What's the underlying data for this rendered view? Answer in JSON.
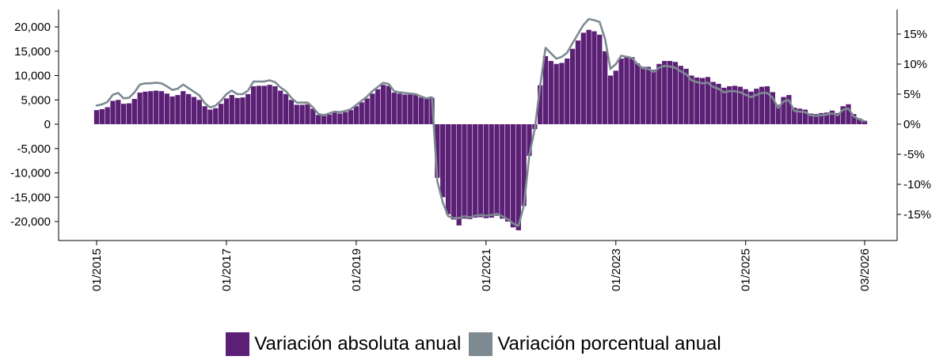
{
  "chart_data": {
    "type": "bar",
    "colors": {
      "bar": "#5b2075",
      "line": "#7e8a92"
    },
    "x_ticks": [
      "01/2015",
      "01/2017",
      "01/2019",
      "01/2021",
      "01/2023",
      "01/2025",
      "03/2026"
    ],
    "y_left": {
      "ylim": [
        -24000,
        24000
      ],
      "ticks": [
        20000,
        15000,
        10000,
        5000,
        0,
        -5000,
        -10000,
        -15000,
        -20000
      ],
      "tick_labels": [
        "20,000",
        "15,000",
        "10,000",
        "5,000",
        "0",
        "-5,000",
        "-10,000",
        "-15,000",
        "-20,000"
      ]
    },
    "y_right": {
      "ylim": [
        -18.9,
        18.9
      ],
      "ticks": [
        15,
        10,
        5,
        0,
        -5,
        -10,
        -15
      ],
      "tick_labels": [
        "15%",
        "10%",
        "5%",
        "0%",
        "-5%",
        "-10%",
        "-15%"
      ]
    },
    "series": [
      {
        "name": "Variación absoluta anual",
        "type": "bar",
        "values": [
          2900,
          3100,
          3500,
          4800,
          5000,
          4200,
          4300,
          5200,
          6500,
          6700,
          6800,
          6900,
          6800,
          6300,
          5700,
          6000,
          6800,
          6200,
          5600,
          5000,
          3700,
          3000,
          3300,
          4200,
          5300,
          6000,
          5400,
          5500,
          6200,
          7800,
          7900,
          7900,
          8100,
          7800,
          6900,
          6200,
          5000,
          4000,
          4000,
          4100,
          3200,
          1900,
          1700,
          2000,
          2400,
          2200,
          2500,
          2900,
          3700,
          4500,
          5300,
          6300,
          7200,
          8100,
          7900,
          6500,
          6300,
          6100,
          6100,
          6000,
          5500,
          5200,
          5400,
          -11000,
          -15000,
          -18500,
          -19600,
          -20800,
          -19400,
          -19500,
          -19200,
          -19100,
          -19300,
          -19200,
          -18800,
          -19400,
          -20000,
          -21200,
          -21800,
          -16800,
          -6500,
          -1000,
          8000,
          14000,
          13000,
          12400,
          12600,
          13500,
          15500,
          17200,
          18800,
          19400,
          19100,
          18400,
          15000,
          10000,
          11000,
          13500,
          14000,
          13800,
          12500,
          11800,
          11800,
          11200,
          12400,
          13000,
          13000,
          12800,
          12000,
          11400,
          10000,
          9600,
          9500,
          9700,
          8700,
          8300,
          7500,
          7800,
          7900,
          7700,
          7200,
          6700,
          7300,
          7700,
          7800,
          6600,
          4000,
          5600,
          6000,
          3400,
          3200,
          3000,
          2200,
          2100,
          2300,
          2400,
          2800,
          2300,
          3700,
          4100,
          2100,
          1200,
          700
        ],
        "color": "#5b2075"
      },
      {
        "name": "Variación porcentual anual",
        "type": "line",
        "values": [
          3.1,
          3.3,
          3.7,
          4.9,
          5.2,
          4.3,
          4.4,
          5.3,
          6.6,
          6.8,
          6.8,
          6.9,
          6.8,
          6.3,
          5.7,
          5.9,
          6.6,
          6.0,
          5.4,
          4.8,
          3.5,
          2.8,
          3.1,
          3.9,
          5.0,
          5.6,
          5.0,
          5.0,
          5.6,
          7.1,
          7.1,
          7.1,
          7.3,
          7.0,
          6.1,
          5.5,
          4.4,
          3.6,
          3.6,
          3.6,
          2.8,
          1.7,
          1.5,
          1.8,
          2.1,
          2.0,
          2.2,
          2.5,
          3.2,
          3.9,
          4.6,
          5.5,
          6.2,
          6.9,
          6.7,
          5.5,
          5.3,
          5.2,
          5.1,
          5.0,
          4.6,
          4.3,
          4.5,
          -9.5,
          -13.0,
          -15.3,
          -15.6,
          -15.6,
          -15.3,
          -15.5,
          -15.2,
          -15.1,
          -15.2,
          -15.1,
          -14.9,
          -15.3,
          -15.8,
          -16.5,
          -16.9,
          -13.5,
          -5.2,
          -0.8,
          6.3,
          12.7,
          11.8,
          10.9,
          11.2,
          11.9,
          13.5,
          15.0,
          16.5,
          17.5,
          17.3,
          17.0,
          14.2,
          9.2,
          10.0,
          11.4,
          11.2,
          11.0,
          10.0,
          9.3,
          9.2,
          8.7,
          9.4,
          9.7,
          9.6,
          9.4,
          8.8,
          8.3,
          7.3,
          7.0,
          6.8,
          6.9,
          6.2,
          5.9,
          5.3,
          5.5,
          5.5,
          5.3,
          4.9,
          4.5,
          4.9,
          5.2,
          5.2,
          4.4,
          2.7,
          3.8,
          4.0,
          2.2,
          2.1,
          2.0,
          1.5,
          1.4,
          1.5,
          1.6,
          1.8,
          1.5,
          2.4,
          2.6,
          1.3,
          0.8,
          0.5
        ],
        "color": "#7e8a92"
      }
    ],
    "legend": {
      "position": "bottom",
      "items": [
        "Variación absoluta anual",
        "Variación porcentual anual"
      ]
    }
  }
}
